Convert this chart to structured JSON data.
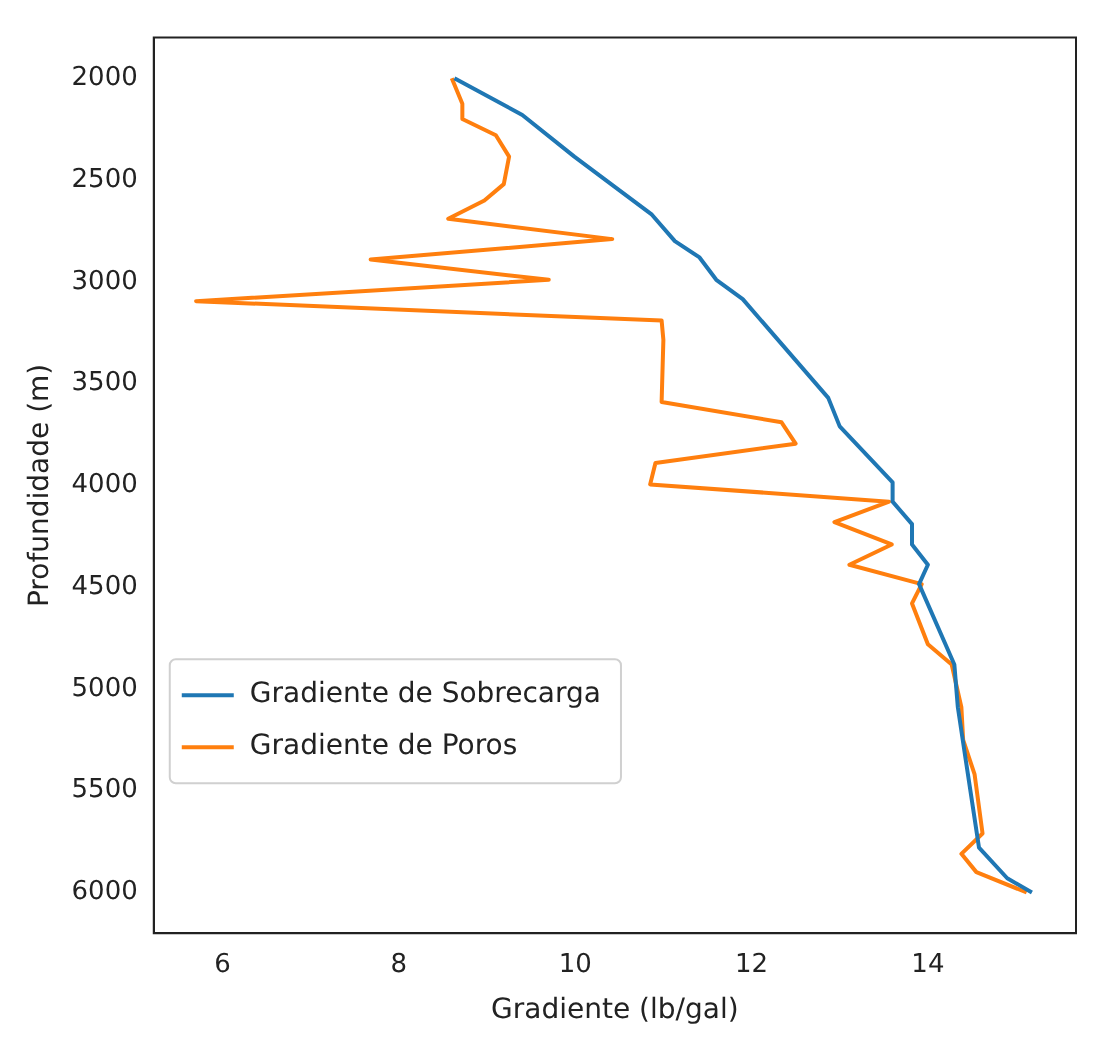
{
  "chart_data": {
    "type": "line",
    "xlabel": "Gradiente (lb/gal)",
    "ylabel": "Profundidade (m)",
    "xlim": [
      5.22,
      15.68
    ],
    "xticks": [
      6,
      8,
      10,
      12,
      14
    ],
    "ylim": [
      6200,
      1800
    ],
    "yticks": [
      2000,
      2500,
      3000,
      3500,
      4000,
      4500,
      5000,
      5500,
      6000
    ],
    "legend": "bottom left",
    "grid": false,
    "series": [
      {
        "name": "Gradiente de Sobrecarga",
        "color": "#1f77b4",
        "x": [
          8.63,
          9.4,
          9.99,
          10.87,
          11.13,
          11.41,
          11.6,
          11.9,
          12.87,
          13.0,
          13.6,
          13.6,
          13.82,
          13.82,
          14.0,
          13.9,
          14.3,
          14.34,
          14.43,
          14.58,
          14.9,
          15.18
        ],
        "values": [
          2000,
          2180,
          2385,
          2670,
          2800,
          2880,
          2990,
          3085,
          3570,
          3710,
          3985,
          4080,
          4190,
          4290,
          4390,
          4485,
          4880,
          5090,
          5350,
          5780,
          5930,
          6000
        ]
      },
      {
        "name": "Gradiente de Poros",
        "color": "#ff7f0e",
        "x": [
          8.6,
          8.72,
          8.72,
          9.1,
          9.25,
          9.19,
          8.97,
          8.56,
          10.42,
          7.68,
          9.7,
          5.7,
          10.98,
          11.0,
          10.98,
          12.34,
          12.5,
          10.91,
          10.85,
          13.56,
          12.94,
          13.59,
          13.11,
          13.93,
          13.82,
          14.0,
          14.27,
          14.38,
          14.4,
          14.53,
          14.62,
          14.38,
          14.55,
          15.12
        ],
        "values": [
          2000,
          2125,
          2200,
          2280,
          2385,
          2520,
          2600,
          2690,
          2790,
          2890,
          2990,
          3095,
          3190,
          3285,
          3590,
          3690,
          3795,
          3890,
          3995,
          4080,
          4180,
          4290,
          4390,
          4485,
          4580,
          4780,
          4880,
          5090,
          5250,
          5420,
          5710,
          5810,
          5900,
          6000
        ]
      }
    ]
  }
}
